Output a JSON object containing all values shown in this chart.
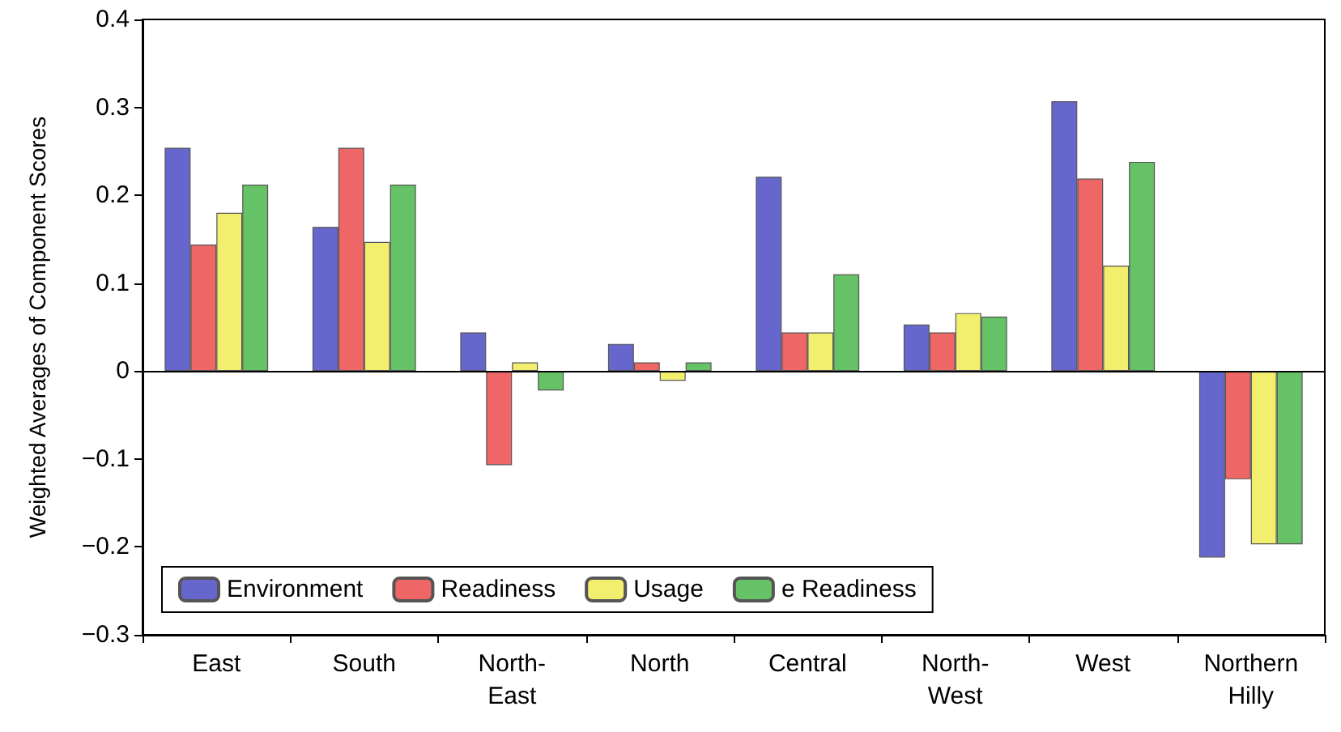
{
  "chart_data": {
    "type": "bar",
    "ylabel": "Weighted Averages of Component Scores",
    "categories": [
      "East",
      "South",
      "North-\nEast",
      "North",
      "Central",
      "North-\nWest",
      "West",
      "Northern\nHilly"
    ],
    "series": [
      {
        "name": "Environment",
        "color": "#6666cc",
        "values": [
          0.254,
          0.164,
          0.044,
          0.031,
          0.221,
          0.053,
          0.307,
          -0.212
        ]
      },
      {
        "name": "Readiness",
        "color": "#ee6666",
        "values": [
          0.144,
          0.254,
          -0.107,
          0.01,
          0.044,
          0.044,
          0.219,
          -0.123
        ]
      },
      {
        "name": "Usage",
        "color": "#f2ee6e",
        "values": [
          0.18,
          0.147,
          0.01,
          -0.011,
          0.044,
          0.066,
          0.12,
          -0.197
        ]
      },
      {
        "name": "e Readiness",
        "color": "#66c266",
        "values": [
          0.212,
          0.212,
          -0.022,
          0.01,
          0.11,
          0.062,
          0.238,
          -0.197
        ]
      }
    ],
    "ylim": [
      -0.3,
      0.4
    ],
    "yticks": [
      {
        "value": -0.3,
        "label": "−0.3"
      },
      {
        "value": -0.2,
        "label": "−0.2"
      },
      {
        "value": -0.1,
        "label": "−0.1"
      },
      0,
      0.1,
      0.2,
      0.3,
      0.4
    ],
    "ref_lines": [
      {
        "axis": "y",
        "value": 0
      }
    ],
    "legend": "bottom left",
    "grid": false
  }
}
